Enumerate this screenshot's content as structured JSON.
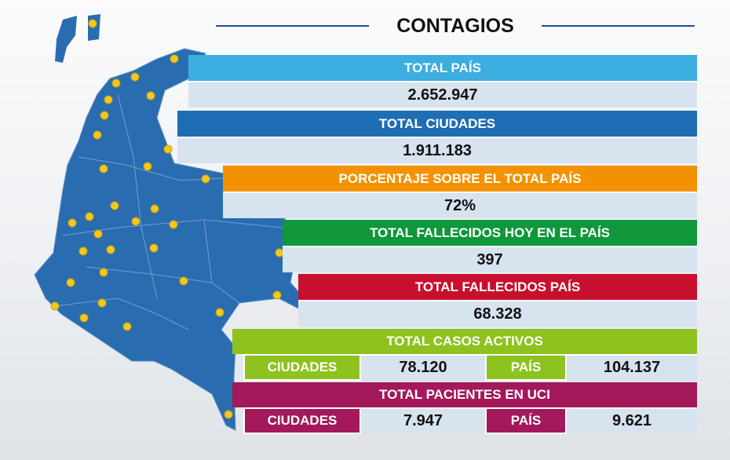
{
  "title": "CONTAGIOS",
  "sections": [
    {
      "header": "TOTAL PAÍS",
      "value": "2.652.947"
    },
    {
      "header": "TOTAL CIUDADES",
      "value": "1.911.183"
    },
    {
      "header": "PORCENTAJE SOBRE EL TOTAL PAÍS",
      "value": "72%"
    },
    {
      "header": "TOTAL FALLECIDOS HOY EN EL PAÍS",
      "value": "397"
    },
    {
      "header": "TOTAL FALLECIDOS PAÍS",
      "value": "68.328"
    }
  ],
  "split_sections": [
    {
      "header": "TOTAL CASOS ACTIVOS",
      "cells": [
        {
          "label": "CIUDADES",
          "value": "78.120"
        },
        {
          "label": "PAÍS",
          "value": "104.137"
        }
      ]
    },
    {
      "header": "TOTAL PACIENTES EN UCI",
      "cells": [
        {
          "label": "CIUDADES",
          "value": "7.947"
        },
        {
          "label": "PAÍS",
          "value": "9.621"
        }
      ]
    }
  ]
}
